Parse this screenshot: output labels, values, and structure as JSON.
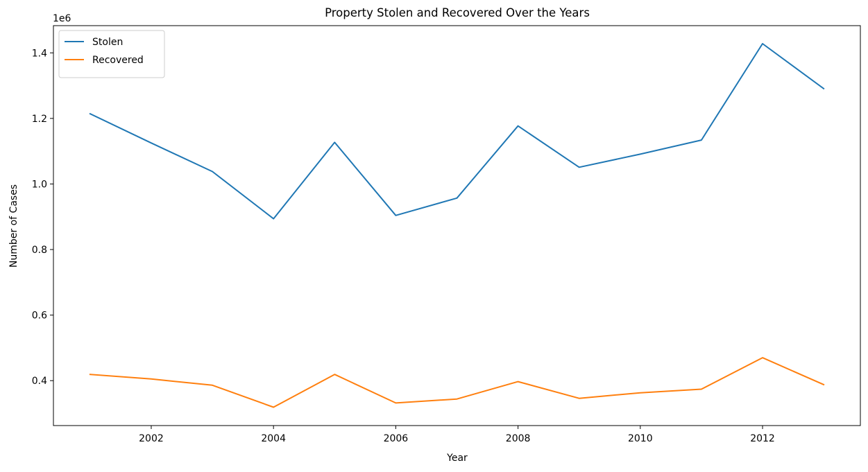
{
  "chart_data": {
    "type": "line",
    "title": "Property Stolen and Recovered Over the Years",
    "xlabel": "Year",
    "ylabel": "Number of Cases",
    "y_offset_label": "1e6",
    "x": [
      2001,
      2002,
      2003,
      2004,
      2005,
      2006,
      2007,
      2008,
      2009,
      2010,
      2011,
      2012,
      2013
    ],
    "series": [
      {
        "name": "Stolen",
        "color": "#1f77b4",
        "values": [
          1214000,
          1125000,
          1038000,
          894000,
          1127000,
          904000,
          957000,
          1177000,
          1051000,
          1091000,
          1134000,
          1428000,
          1291000
        ]
      },
      {
        "name": "Recovered",
        "color": "#ff7f0e",
        "values": [
          419000,
          405000,
          386000,
          319000,
          419000,
          332000,
          344000,
          397000,
          346000,
          363000,
          374000,
          470000,
          388000
        ]
      }
    ],
    "xlim": [
      2000.4,
      2013.6
    ],
    "ylim": [
      263000,
      1483000
    ],
    "x_ticks": [
      2002,
      2004,
      2006,
      2008,
      2010,
      2012
    ],
    "x_tick_labels": [
      "2002",
      "2004",
      "2006",
      "2008",
      "2010",
      "2012"
    ],
    "y_ticks": [
      400000,
      600000,
      800000,
      1000000,
      1200000,
      1400000
    ],
    "y_tick_labels": [
      "0.4",
      "0.6",
      "0.8",
      "1.0",
      "1.2",
      "1.4"
    ],
    "grid": false,
    "legend_position": "top-left"
  }
}
